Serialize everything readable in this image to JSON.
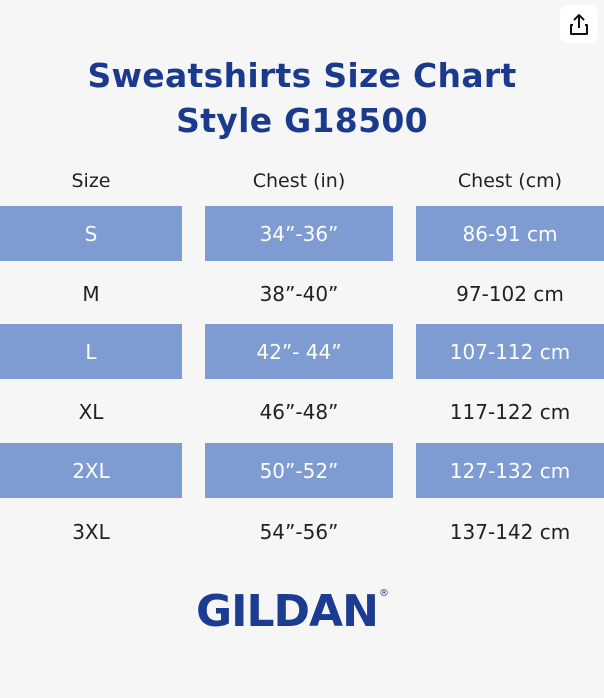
{
  "header": {
    "title": [
      "Sweatshirts Size Chart",
      "Style G18500"
    ]
  },
  "table": {
    "columns": [
      "Size",
      "Chest (in)",
      "Chest (cm)"
    ],
    "rows": [
      [
        "S",
        "34”-36”",
        "86-91 cm"
      ],
      [
        "M",
        "38”-40”",
        "97-102 cm"
      ],
      [
        "L",
        "42”- 44”",
        "107-112 cm"
      ],
      [
        "XL",
        "46”-48”",
        "117-122 cm"
      ],
      [
        "2XL",
        "50”-52”",
        "127-132 cm"
      ],
      [
        "3XL",
        "54”-56”",
        "137-142 cm"
      ]
    ]
  },
  "logo": {
    "text": "GILDAN",
    "mark": "®"
  }
}
